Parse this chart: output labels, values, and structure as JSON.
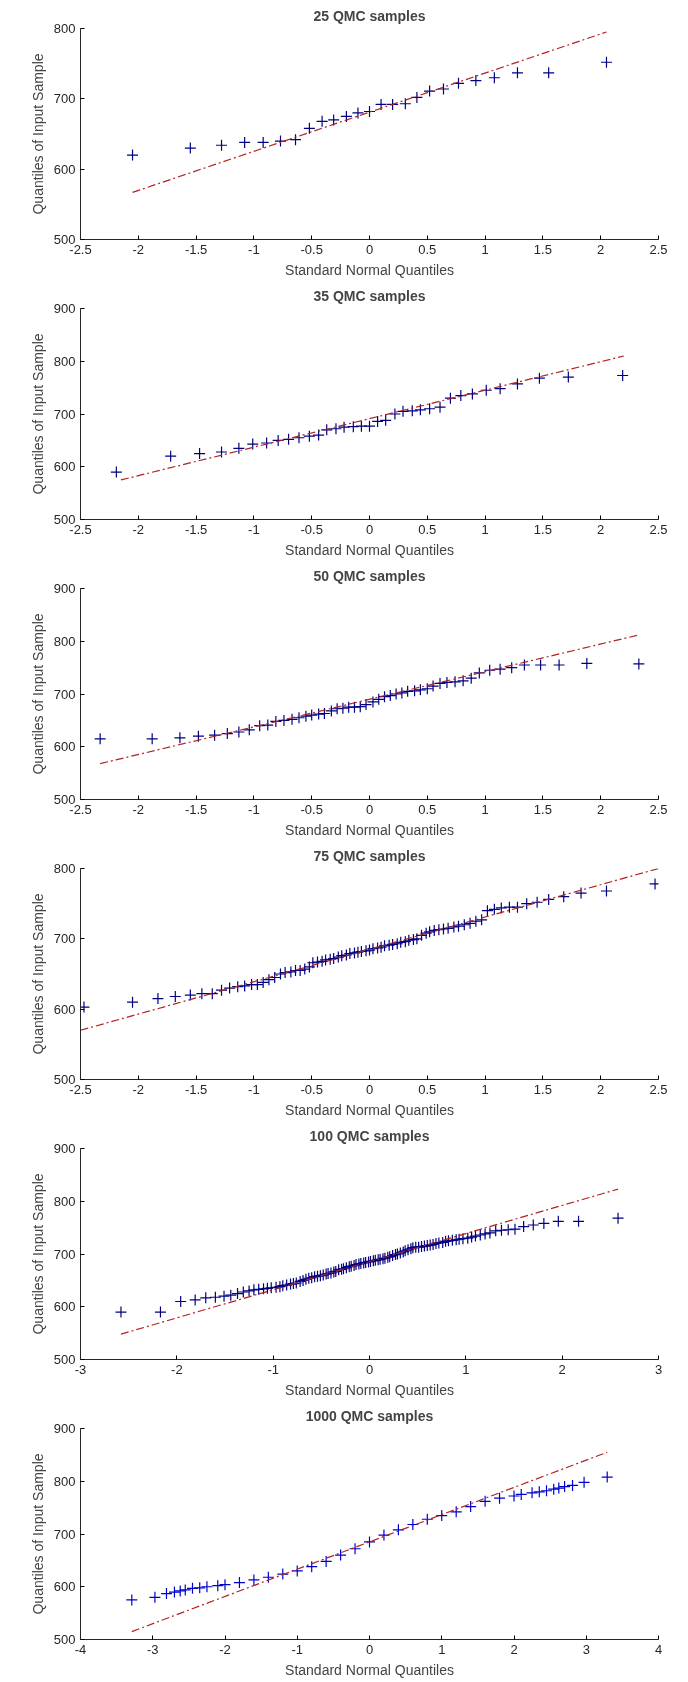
{
  "chart_data": [
    {
      "type": "scatter",
      "title": "25 QMC samples",
      "xlabel": "Standard Normal Quantiles",
      "ylabel": "Quantiles of Input Sample",
      "xlim": [
        -2.5,
        2.5
      ],
      "xticks": [
        -2.5,
        -2,
        -1.5,
        -1,
        -0.5,
        0,
        0.5,
        1,
        1.5,
        2,
        2.5
      ],
      "ylim": [
        500,
        800
      ],
      "yticks": [
        500,
        600,
        700,
        800
      ],
      "series": [
        {
          "type": "scatter",
          "marker": "cross",
          "color": "#000080",
          "x": [
            -2.05,
            -1.55,
            -1.28,
            -1.08,
            -0.92,
            -0.77,
            -0.64,
            -0.52,
            -0.41,
            -0.31,
            -0.2,
            -0.1,
            0,
            0.1,
            0.2,
            0.31,
            0.41,
            0.52,
            0.64,
            0.77,
            0.92,
            1.08,
            1.28,
            1.55,
            2.05
          ],
          "values": [
            620,
            630,
            634,
            638,
            638,
            640,
            642,
            658,
            668,
            670,
            675,
            680,
            682,
            692,
            692,
            693,
            702,
            711,
            714,
            722,
            726,
            730,
            737,
            737,
            752
          ]
        },
        {
          "type": "line",
          "line_style": "dashed",
          "color": "#b22222",
          "x": [
            -2.05,
            2.05
          ],
          "values": [
            567,
            795
          ]
        }
      ]
    },
    {
      "type": "scatter",
      "title": "35 QMC samples",
      "xlabel": "Standard Normal Quantiles",
      "ylabel": "Quantiles of Input Sample",
      "xlim": [
        -2.5,
        2.5
      ],
      "xticks": [
        -2.5,
        -2,
        -1.5,
        -1,
        -0.5,
        0,
        0.5,
        1,
        1.5,
        2,
        2.5
      ],
      "ylim": [
        500,
        900
      ],
      "yticks": [
        500,
        600,
        700,
        800,
        900
      ],
      "series": [
        {
          "type": "scatter",
          "marker": "cross",
          "color": "#000080",
          "x": [
            -2.19,
            -1.72,
            -1.47,
            -1.28,
            -1.13,
            -1.01,
            -0.89,
            -0.79,
            -0.7,
            -0.61,
            -0.52,
            -0.44,
            -0.37,
            -0.29,
            -0.22,
            -0.14,
            -0.07,
            0,
            0.07,
            0.14,
            0.22,
            0.29,
            0.37,
            0.44,
            0.52,
            0.61,
            0.7,
            0.79,
            0.89,
            1.01,
            1.13,
            1.28,
            1.47,
            1.72,
            2.19
          ],
          "values": [
            590,
            620,
            625,
            628,
            635,
            643,
            645,
            650,
            652,
            655,
            658,
            660,
            670,
            672,
            675,
            676,
            677,
            677,
            686,
            688,
            700,
            705,
            706,
            708,
            710,
            713,
            730,
            735,
            738,
            745,
            748,
            757,
            768,
            770,
            773
          ]
        },
        {
          "type": "line",
          "line_style": "dashed",
          "color": "#b22222",
          "x": [
            -2.15,
            2.2
          ],
          "values": [
            575,
            810
          ]
        }
      ]
    },
    {
      "type": "scatter",
      "title": "50 QMC samples",
      "xlabel": "Standard Normal Quantiles",
      "ylabel": "Quantiles of Input Sample",
      "xlim": [
        -2.5,
        2.5
      ],
      "xticks": [
        -2.5,
        -2,
        -1.5,
        -1,
        -0.5,
        0,
        0.5,
        1,
        1.5,
        2,
        2.5
      ],
      "ylim": [
        500,
        900
      ],
      "yticks": [
        500,
        600,
        700,
        800,
        900
      ],
      "series": [
        {
          "type": "scatter",
          "marker": "cross",
          "color": "#000080",
          "x": [
            -2.33,
            -1.88,
            -1.64,
            -1.48,
            -1.34,
            -1.23,
            -1.13,
            -1.04,
            -0.95,
            -0.88,
            -0.81,
            -0.74,
            -0.67,
            -0.61,
            -0.55,
            -0.5,
            -0.44,
            -0.39,
            -0.33,
            -0.28,
            -0.23,
            -0.18,
            -0.13,
            -0.08,
            -0.03,
            0.03,
            0.08,
            0.13,
            0.18,
            0.23,
            0.28,
            0.33,
            0.39,
            0.44,
            0.5,
            0.55,
            0.61,
            0.67,
            0.74,
            0.81,
            0.88,
            0.95,
            1.04,
            1.13,
            1.23,
            1.34,
            1.48,
            1.64,
            1.88,
            2.33
          ],
          "values": [
            615,
            615,
            617,
            620,
            622,
            625,
            628,
            632,
            640,
            641,
            648,
            650,
            652,
            655,
            658,
            660,
            662,
            663,
            668,
            672,
            673,
            675,
            675,
            676,
            680,
            685,
            690,
            695,
            697,
            700,
            702,
            705,
            706,
            708,
            710,
            715,
            720,
            722,
            723,
            725,
            730,
            740,
            745,
            747,
            750,
            755,
            755,
            755,
            758,
            757
          ]
        },
        {
          "type": "line",
          "line_style": "dashed",
          "color": "#b22222",
          "x": [
            -2.33,
            2.33
          ],
          "values": [
            568,
            812
          ]
        }
      ]
    },
    {
      "type": "scatter",
      "title": "75 QMC samples",
      "xlabel": "Standard Normal Quantiles",
      "ylabel": "Quantiles of Input Sample",
      "xlim": [
        -2.5,
        2.5
      ],
      "xticks": [
        -2.5,
        -2,
        -1.5,
        -1,
        -0.5,
        0,
        0.5,
        1,
        1.5,
        2,
        2.5
      ],
      "ylim": [
        500,
        800
      ],
      "yticks": [
        500,
        600,
        700,
        800
      ],
      "series": [
        {
          "type": "scatter",
          "marker": "cross",
          "color": "#000080",
          "x": [
            -2.47,
            -2.05,
            -1.83,
            -1.68,
            -1.55,
            -1.45,
            -1.36,
            -1.28,
            -1.21,
            -1.14,
            -1.08,
            -1.02,
            -0.97,
            -0.92,
            -0.87,
            -0.82,
            -0.77,
            -0.73,
            -0.68,
            -0.64,
            -0.6,
            -0.56,
            -0.52,
            -0.49,
            -0.45,
            -0.41,
            -0.38,
            -0.34,
            -0.31,
            -0.27,
            -0.24,
            -0.2,
            -0.17,
            -0.13,
            -0.1,
            -0.07,
            -0.03,
            0,
            0.03,
            0.07,
            0.1,
            0.13,
            0.17,
            0.2,
            0.24,
            0.27,
            0.31,
            0.34,
            0.38,
            0.41,
            0.45,
            0.49,
            0.52,
            0.56,
            0.6,
            0.64,
            0.68,
            0.73,
            0.77,
            0.82,
            0.87,
            0.92,
            0.97,
            1.02,
            1.08,
            1.14,
            1.21,
            1.28,
            1.36,
            1.45,
            1.55,
            1.68,
            1.83,
            2.05,
            2.47
          ],
          "values": [
            603,
            610,
            615,
            618,
            620,
            622,
            622,
            627,
            630,
            632,
            633,
            635,
            635,
            638,
            642,
            645,
            650,
            652,
            653,
            655,
            655,
            657,
            660,
            666,
            667,
            668,
            670,
            671,
            672,
            674,
            676,
            677,
            679,
            680,
            681,
            682,
            683,
            684,
            686,
            687,
            688,
            690,
            691,
            692,
            693,
            695,
            696,
            698,
            699,
            700,
            705,
            708,
            710,
            712,
            713,
            714,
            715,
            717,
            718,
            720,
            722,
            725,
            727,
            740,
            742,
            744,
            745,
            745,
            750,
            752,
            756,
            760,
            765,
            768,
            778
          ]
        },
        {
          "type": "line",
          "line_style": "dashed",
          "color": "#b22222",
          "x": [
            -2.5,
            2.5
          ],
          "values": [
            570,
            800
          ]
        }
      ]
    },
    {
      "type": "scatter",
      "title": "100 QMC samples",
      "xlabel": "Standard Normal Quantiles",
      "ylabel": "Quantiles of Input Sample",
      "xlim": [
        -3,
        3
      ],
      "xticks": [
        -3,
        -2,
        -1,
        0,
        1,
        2,
        3
      ],
      "ylim": [
        500,
        900
      ],
      "yticks": [
        500,
        600,
        700,
        800,
        900
      ],
      "series": [
        {
          "type": "scatter",
          "marker": "cross",
          "color": "#000080",
          "x": [
            -2.58,
            -2.17,
            -1.96,
            -1.81,
            -1.7,
            -1.6,
            -1.51,
            -1.44,
            -1.37,
            -1.31,
            -1.25,
            -1.2,
            -1.15,
            -1.1,
            -1.06,
            -1.02,
            -0.97,
            -0.93,
            -0.9,
            -0.86,
            -0.82,
            -0.79,
            -0.76,
            -0.72,
            -0.69,
            -0.66,
            -0.63,
            -0.6,
            -0.57,
            -0.54,
            -0.51,
            -0.48,
            -0.45,
            -0.43,
            -0.4,
            -0.37,
            -0.35,
            -0.32,
            -0.29,
            -0.27,
            -0.24,
            -0.21,
            -0.19,
            -0.16,
            -0.14,
            -0.11,
            -0.09,
            -0.06,
            -0.04,
            -0.01,
            0.01,
            0.04,
            0.06,
            0.09,
            0.11,
            0.14,
            0.16,
            0.19,
            0.21,
            0.24,
            0.27,
            0.29,
            0.32,
            0.35,
            0.37,
            0.4,
            0.43,
            0.45,
            0.48,
            0.51,
            0.54,
            0.57,
            0.6,
            0.63,
            0.66,
            0.69,
            0.72,
            0.76,
            0.79,
            0.82,
            0.86,
            0.9,
            0.93,
            0.97,
            1.02,
            1.06,
            1.1,
            1.15,
            1.2,
            1.25,
            1.31,
            1.37,
            1.44,
            1.51,
            1.6,
            1.7,
            1.81,
            1.96,
            2.17,
            2.58
          ],
          "values": [
            590,
            590,
            610,
            613,
            617,
            618,
            620,
            622,
            625,
            628,
            630,
            632,
            633,
            634,
            635,
            636,
            637,
            638,
            640,
            641,
            643,
            644,
            645,
            648,
            650,
            652,
            654,
            655,
            657,
            658,
            659,
            660,
            662,
            663,
            664,
            666,
            667,
            670,
            671,
            672,
            674,
            676,
            677,
            678,
            680,
            681,
            682,
            683,
            684,
            685,
            686,
            687,
            688,
            689,
            690,
            691,
            692,
            694,
            695,
            697,
            699,
            700,
            702,
            704,
            706,
            708,
            710,
            712,
            713,
            713,
            714,
            715,
            716,
            717,
            718,
            720,
            721,
            722,
            724,
            725,
            726,
            727,
            728,
            729,
            730,
            732,
            734,
            736,
            738,
            740,
            744,
            745,
            746,
            747,
            752,
            755,
            758,
            762,
            762,
            768
          ]
        },
        {
          "type": "line",
          "line_style": "dashed",
          "color": "#b22222",
          "x": [
            -2.58,
            2.58
          ],
          "values": [
            548,
            823
          ]
        }
      ]
    },
    {
      "type": "scatter",
      "title": "1000 QMC samples",
      "xlabel": "Standard Normal Quantiles",
      "ylabel": "Quantiles of Input Sample",
      "xlim": [
        -4,
        4
      ],
      "xticks": [
        -4,
        -3,
        -2,
        -1,
        0,
        1,
        2,
        3,
        4
      ],
      "ylim": [
        500,
        900
      ],
      "yticks": [
        500,
        600,
        700,
        800,
        900
      ],
      "series": [
        {
          "type": "scatter",
          "marker": "cross",
          "color": "#0000cd",
          "x": [
            -3.29,
            -2.97,
            -2.81,
            -2.7,
            -2.62,
            -2.55,
            -2.45,
            -2.35,
            -2.25,
            -2.1,
            -2.0,
            -1.8,
            -1.6,
            -1.4,
            -1.2,
            -1.0,
            -0.8,
            -0.6,
            -0.4,
            -0.2,
            0,
            0.2,
            0.4,
            0.6,
            0.8,
            1.0,
            1.2,
            1.4,
            1.6,
            1.8,
            2.0,
            2.1,
            2.25,
            2.35,
            2.45,
            2.55,
            2.62,
            2.7,
            2.81,
            2.97,
            3.29
          ],
          "values": [
            575,
            580,
            587,
            590,
            592,
            594,
            597,
            598,
            600,
            602,
            604,
            608,
            613,
            618,
            624,
            630,
            638,
            648,
            660,
            672,
            685,
            698,
            708,
            718,
            728,
            735,
            742,
            752,
            762,
            768,
            772,
            775,
            778,
            780,
            782,
            785,
            787,
            790,
            792,
            798,
            808
          ]
        },
        {
          "type": "line",
          "line_style": "dashed",
          "color": "#b22222",
          "x": [
            -3.29,
            3.29
          ],
          "values": [
            515,
            855
          ]
        }
      ]
    }
  ]
}
